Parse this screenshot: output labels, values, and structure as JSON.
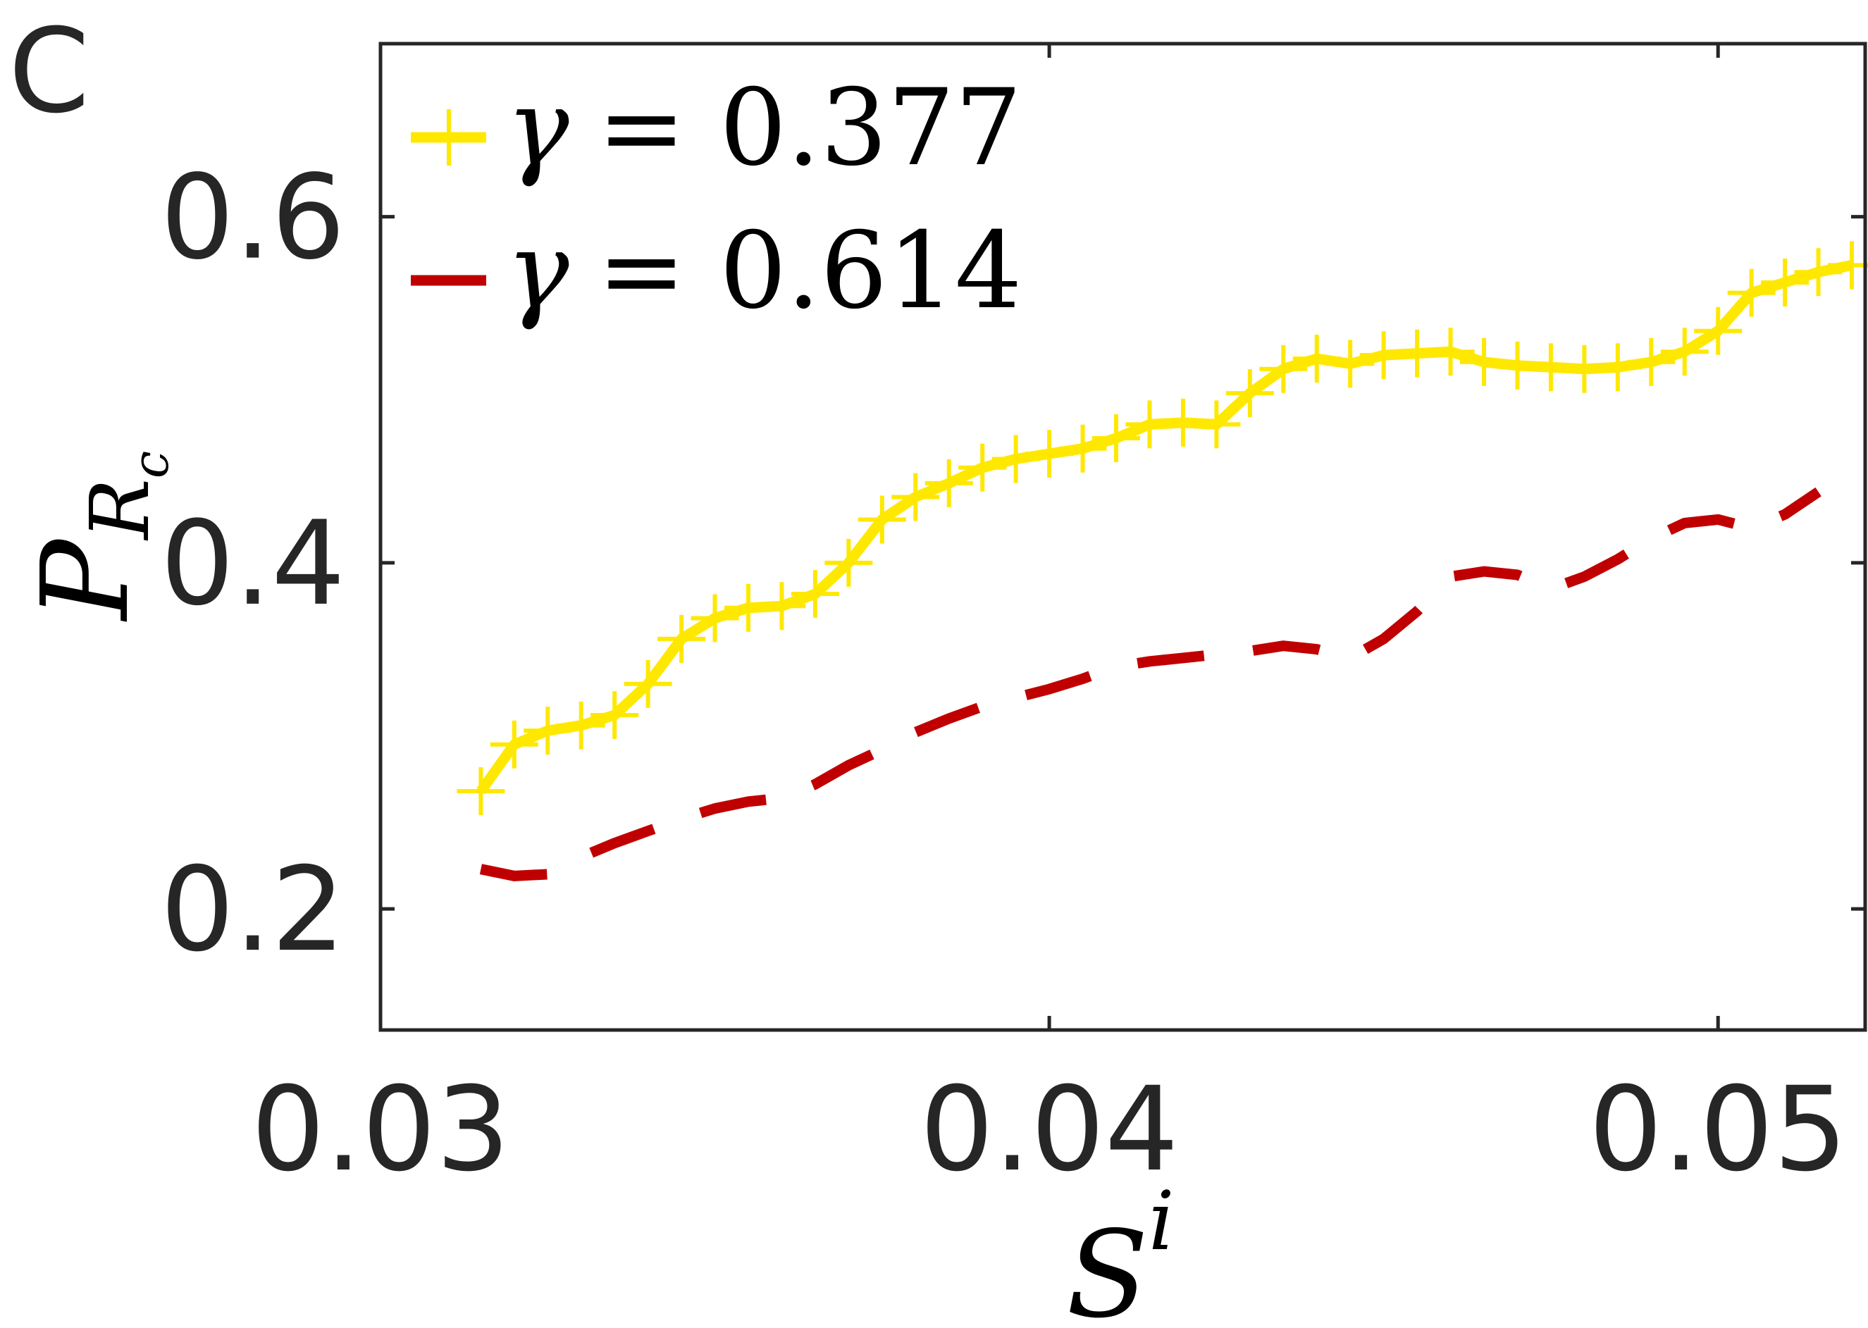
{
  "panel_label": "C",
  "chart_data": {
    "type": "line",
    "title": "",
    "xlabel": {
      "base": "S",
      "sup": "i"
    },
    "ylabel": {
      "base": "P",
      "sub": "R",
      "subsub": "c"
    },
    "xlim": [
      0.03,
      0.0522
    ],
    "ylim": [
      0.13,
      0.7
    ],
    "xticks": [
      0.03,
      0.04,
      0.05
    ],
    "xtick_labels": [
      "0.03",
      "0.04",
      "0.05"
    ],
    "yticks": [
      0.2,
      0.4,
      0.6
    ],
    "ytick_labels": [
      "0.2",
      "0.4",
      "0.6"
    ],
    "grid": false,
    "legend_position": "top-left",
    "series": [
      {
        "name": "γ = 0.377",
        "legend_symbol": "γ",
        "legend_value": "= 0.377",
        "color": "#FFE800",
        "line_style": "solid",
        "marker": "+",
        "x": [
          0.0315,
          0.032,
          0.0325,
          0.033,
          0.0335,
          0.034,
          0.0345,
          0.035,
          0.0355,
          0.036,
          0.0365,
          0.037,
          0.0375,
          0.038,
          0.0385,
          0.039,
          0.0395,
          0.04,
          0.0405,
          0.041,
          0.0415,
          0.042,
          0.0425,
          0.043,
          0.0435,
          0.044,
          0.0445,
          0.045,
          0.0455,
          0.046,
          0.0465,
          0.047,
          0.0475,
          0.048,
          0.0485,
          0.049,
          0.0495,
          0.05,
          0.0505,
          0.051,
          0.0515,
          0.052
        ],
        "y": [
          0.268,
          0.295,
          0.303,
          0.306,
          0.312,
          0.33,
          0.356,
          0.368,
          0.374,
          0.375,
          0.382,
          0.4,
          0.425,
          0.438,
          0.446,
          0.455,
          0.46,
          0.463,
          0.466,
          0.472,
          0.48,
          0.481,
          0.48,
          0.498,
          0.512,
          0.518,
          0.515,
          0.52,
          0.521,
          0.522,
          0.516,
          0.514,
          0.513,
          0.512,
          0.513,
          0.516,
          0.522,
          0.534,
          0.556,
          0.562,
          0.568,
          0.572
        ]
      },
      {
        "name": "γ = 0.614",
        "legend_symbol": "γ",
        "legend_value": "= 0.614",
        "color": "#C00000",
        "line_style": "dashed",
        "marker": "none",
        "x": [
          0.0315,
          0.032,
          0.0325,
          0.033,
          0.0335,
          0.034,
          0.0345,
          0.035,
          0.0355,
          0.036,
          0.0365,
          0.037,
          0.0375,
          0.038,
          0.0385,
          0.039,
          0.0395,
          0.04,
          0.0405,
          0.041,
          0.0415,
          0.042,
          0.0425,
          0.043,
          0.0435,
          0.044,
          0.0445,
          0.045,
          0.0455,
          0.046,
          0.0465,
          0.047,
          0.0475,
          0.048,
          0.0485,
          0.049,
          0.0495,
          0.05,
          0.0505,
          0.051,
          0.0515
        ],
        "y": [
          0.223,
          0.219,
          0.22,
          0.23,
          0.238,
          0.245,
          0.252,
          0.258,
          0.262,
          0.264,
          0.272,
          0.283,
          0.292,
          0.302,
          0.31,
          0.317,
          0.322,
          0.327,
          0.333,
          0.34,
          0.343,
          0.345,
          0.347,
          0.349,
          0.352,
          0.35,
          0.345,
          0.356,
          0.372,
          0.392,
          0.395,
          0.393,
          0.385,
          0.392,
          0.402,
          0.414,
          0.423,
          0.425,
          0.42,
          0.428,
          0.441
        ]
      }
    ]
  }
}
